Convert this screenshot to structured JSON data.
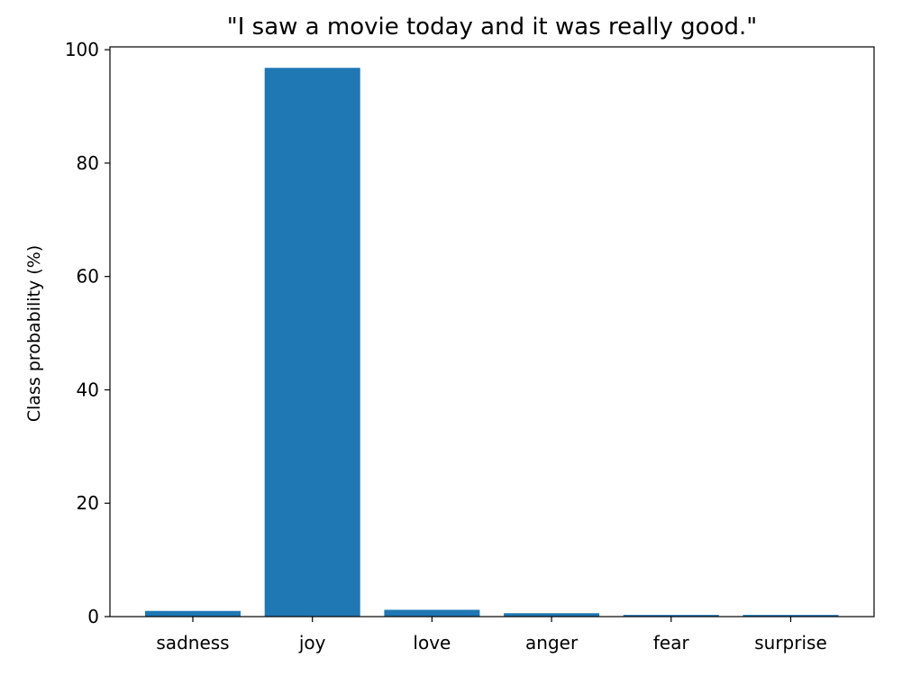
{
  "chart_data": {
    "type": "bar",
    "title": "\"I saw a movie today and it was really good.\"",
    "xlabel": "",
    "ylabel": "Class probability (%)",
    "categories": [
      "sadness",
      "joy",
      "love",
      "anger",
      "fear",
      "surprise"
    ],
    "values": [
      1.0,
      96.8,
      1.2,
      0.6,
      0.3,
      0.3
    ],
    "yticks": [
      0,
      20,
      40,
      60,
      80,
      100
    ],
    "ylim": [
      0,
      100.5
    ],
    "grid": false,
    "bar_color": "#1f77b4"
  }
}
